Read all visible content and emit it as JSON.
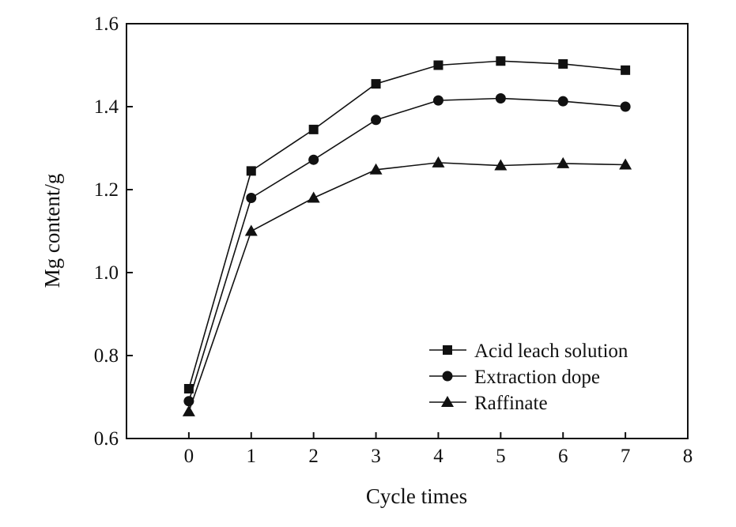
{
  "chart_data": {
    "type": "line",
    "xlabel": "Cycle times",
    "ylabel": "Mg content/g",
    "xlim": [
      -1,
      8
    ],
    "ylim": [
      0.6,
      1.6
    ],
    "x": [
      0,
      1,
      2,
      3,
      4,
      5,
      6,
      7
    ],
    "xticks": [
      "0",
      "1",
      "2",
      "3",
      "4",
      "5",
      "6",
      "7",
      "8"
    ],
    "yticks": [
      "0.6",
      "0.8",
      "1.0",
      "1.2",
      "1.4",
      "1.6"
    ],
    "grid": false,
    "legend_position": "bottom-right",
    "line_color": "#111111",
    "series": [
      {
        "name": "Acid leach solution",
        "marker": "square",
        "values": [
          0.72,
          1.245,
          1.345,
          1.455,
          1.5,
          1.51,
          1.503,
          1.488
        ]
      },
      {
        "name": "Extraction dope",
        "marker": "circle",
        "values": [
          0.69,
          1.18,
          1.272,
          1.368,
          1.415,
          1.42,
          1.413,
          1.4
        ]
      },
      {
        "name": "Raffinate",
        "marker": "triangle",
        "values": [
          0.665,
          1.1,
          1.18,
          1.248,
          1.265,
          1.258,
          1.263,
          1.26
        ]
      }
    ]
  }
}
